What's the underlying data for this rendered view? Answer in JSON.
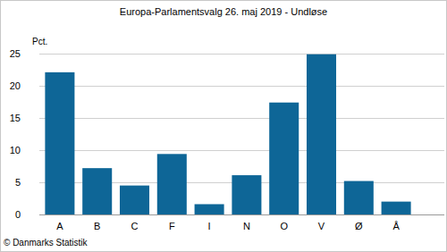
{
  "chart_data": {
    "type": "bar",
    "title": "Europa-Parlamentsvalg 26. maj 2019 - Undløse",
    "y_label": "Pct.",
    "source": "© Danmarks Statistik",
    "categories": [
      "A",
      "B",
      "C",
      "F",
      "I",
      "N",
      "O",
      "V",
      "Ø",
      "Å"
    ],
    "values": [
      22.1,
      7.2,
      4.5,
      9.4,
      1.6,
      6.1,
      17.4,
      24.9,
      5.2,
      2.0
    ],
    "color": "#0e6697",
    "ylim": [
      0,
      25
    ],
    "yticks": [
      0,
      5,
      10,
      15,
      20,
      25
    ],
    "grid": true
  }
}
